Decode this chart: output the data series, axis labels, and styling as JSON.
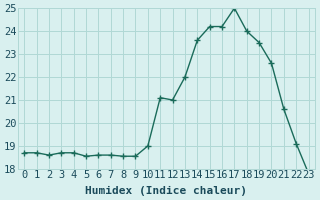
{
  "x": [
    0,
    1,
    2,
    3,
    4,
    5,
    6,
    7,
    8,
    9,
    10,
    11,
    12,
    13,
    14,
    15,
    16,
    17,
    18,
    19,
    20,
    21,
    22,
    23
  ],
  "y": [
    18.7,
    18.7,
    18.6,
    18.7,
    18.7,
    18.55,
    18.6,
    18.6,
    18.55,
    18.55,
    19.0,
    21.1,
    21.0,
    22.0,
    23.6,
    24.2,
    24.2,
    25.0,
    24.0,
    23.5,
    22.6,
    20.6,
    19.1,
    17.8
  ],
  "xlabel": "Humidex (Indice chaleur)",
  "ylim": [
    18,
    25
  ],
  "xlim_min": -0.5,
  "xlim_max": 23.5,
  "yticks": [
    18,
    19,
    20,
    21,
    22,
    23,
    24,
    25
  ],
  "xticks": [
    0,
    1,
    2,
    3,
    4,
    5,
    6,
    7,
    8,
    9,
    10,
    11,
    12,
    13,
    14,
    15,
    16,
    17,
    18,
    19,
    20,
    21,
    22,
    23
  ],
  "line_color": "#1a6b5a",
  "marker": "+",
  "bg_color": "#d9f0ef",
  "grid_color": "#b0d8d5",
  "font_color": "#1a4a5a",
  "font_size": 7.5
}
